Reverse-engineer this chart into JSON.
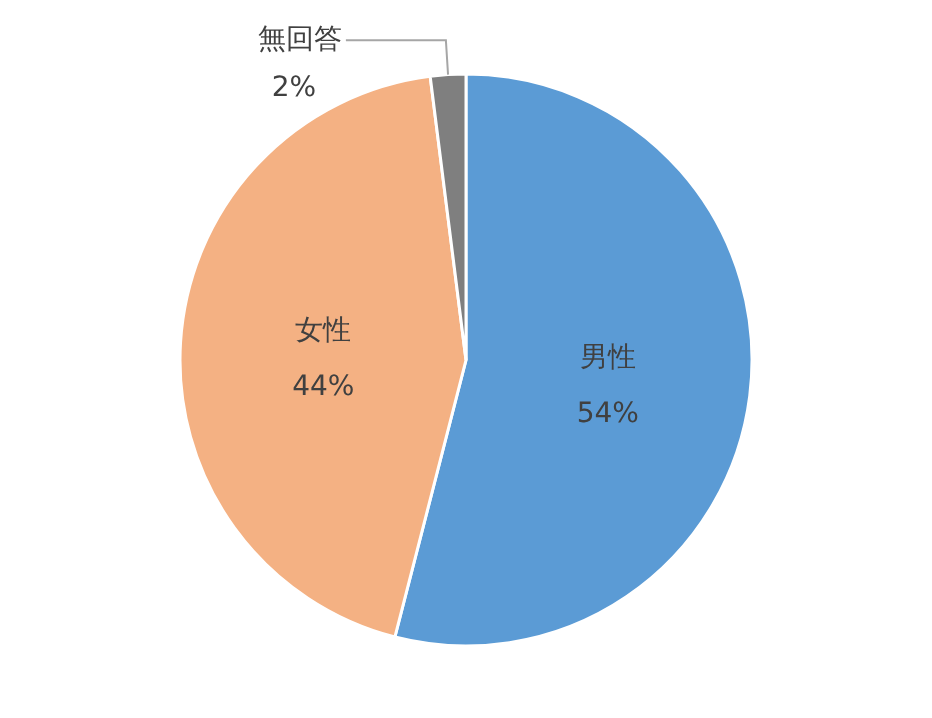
{
  "chart_data": {
    "type": "pie",
    "categories": [
      "男性",
      "女性",
      "無回答"
    ],
    "values": [
      54,
      44,
      2
    ],
    "value_labels": [
      "54%",
      "44%",
      "2%"
    ],
    "colors": [
      "#5b9bd5",
      "#f4b183",
      "#7f7f7f"
    ],
    "legend": false
  }
}
